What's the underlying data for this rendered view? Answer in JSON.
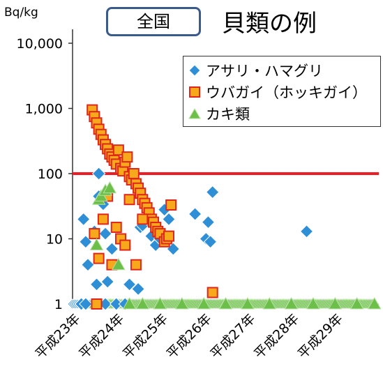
{
  "header": {
    "unit": "Bq/kg",
    "region": "全国",
    "title": "貝類の例"
  },
  "legend": {
    "items": [
      {
        "label": "アサリ・ハマグリ",
        "marker": "diamond",
        "color": "#2f8fd6"
      },
      {
        "label": "ウバガイ（ホッキガイ）",
        "marker": "square",
        "color": "#f7a81b"
      },
      {
        "label": "カキ類",
        "marker": "triangle",
        "color": "#6cc04a"
      }
    ]
  },
  "colors": {
    "diamond_fill": "#2f8fd6",
    "diamond_stroke": "#ffffff",
    "square_fill": "#f7a81b",
    "square_stroke": "#e0261b",
    "triangle_fill": "#6cc04a",
    "triangle_stroke": "#b7e0a4",
    "limit_line": "#ee1c24",
    "axis": "#333333"
  },
  "chart_data": {
    "type": "scatter",
    "title": "貝類の例",
    "ylabel": "Bq/kg",
    "y_scale": "log",
    "ylim": [
      1,
      10000
    ],
    "y_ticks": [
      1,
      10,
      100,
      1000,
      10000
    ],
    "y_tick_labels": [
      "1",
      "10",
      "100",
      "1,000",
      "10,000"
    ],
    "x_ticks": [
      2011,
      2012,
      2013,
      2014,
      2015,
      2016,
      2017
    ],
    "x_tick_labels": [
      "平成23年",
      "平成24年",
      "平成25年",
      "平成26年",
      "平成27年",
      "平成28年",
      "平成29年"
    ],
    "xlim": [
      2011.0,
      2018.0
    ],
    "limit_value": 100,
    "series": [
      {
        "name": "アサリ・ハマグリ",
        "marker": "diamond",
        "x": [
          2011.2,
          2011.25,
          2011.3,
          2011.3,
          2011.35,
          2011.5,
          2011.55,
          2011.6,
          2011.7,
          2011.75,
          2011.8,
          2011.9,
          2012.3,
          2012.5,
          2012.55,
          2012.6,
          2012.7,
          2012.8,
          2012.9,
          2013.0,
          2013.1,
          2013.2,
          2013.3,
          2013.8,
          2014.05,
          2014.1,
          2014.15,
          2014.2,
          2016.35,
          2011.6,
          2011.75,
          2012.0,
          2012.2
        ],
        "y": [
          1,
          20,
          1,
          9,
          4,
          13,
          2,
          100,
          34,
          12,
          2.2,
          7,
          2,
          1.7,
          15,
          16,
          20,
          11,
          8,
          10,
          28,
          20,
          7,
          24,
          10,
          18,
          9,
          52,
          13,
          45,
          1,
          1,
          1
        ]
      },
      {
        "name": "ウバガイ（ホッキガイ）",
        "marker": "square",
        "x": [
          2011.45,
          2011.5,
          2011.55,
          2011.6,
          2011.65,
          2011.7,
          2011.75,
          2011.8,
          2011.85,
          2011.9,
          2011.95,
          2012.0,
          2012.05,
          2012.1,
          2012.15,
          2012.2,
          2012.25,
          2012.3,
          2012.35,
          2012.4,
          2012.45,
          2012.5,
          2012.55,
          2012.6,
          2012.65,
          2012.7,
          2012.75,
          2012.8,
          2012.85,
          2012.9,
          2012.95,
          2013.0,
          2013.1,
          2013.15,
          2013.2,
          2013.25,
          2011.5,
          2011.6,
          2011.7,
          2011.8,
          2011.9,
          2012.0,
          2012.1,
          2012.2,
          2012.3,
          2012.45,
          2012.6,
          2014.2,
          2011.55
        ],
        "y": [
          950,
          750,
          600,
          480,
          400,
          330,
          280,
          240,
          200,
          180,
          160,
          140,
          230,
          120,
          110,
          150,
          180,
          90,
          80,
          100,
          70,
          60,
          50,
          40,
          35,
          30,
          25,
          20,
          18,
          15,
          13,
          12,
          9,
          10,
          11,
          33,
          12,
          5,
          20,
          45,
          4,
          15,
          10,
          8,
          40,
          4,
          20,
          1.5,
          1
        ]
      },
      {
        "name": "カキ類",
        "marker": "triangle",
        "x": [
          2011.55,
          2011.6,
          2011.65,
          2011.75,
          2011.85,
          2012.05,
          2012.3,
          2012.6,
          2013.0,
          2013.5,
          2014.0,
          2014.5,
          2015.0,
          2015.5,
          2016.0,
          2016.5,
          2017.0,
          2017.5,
          2017.9
        ],
        "y": [
          8,
          40,
          45,
          55,
          60,
          4,
          1,
          1,
          1,
          1,
          1,
          1,
          1,
          1,
          1,
          1,
          1,
          1,
          1
        ]
      }
    ]
  }
}
